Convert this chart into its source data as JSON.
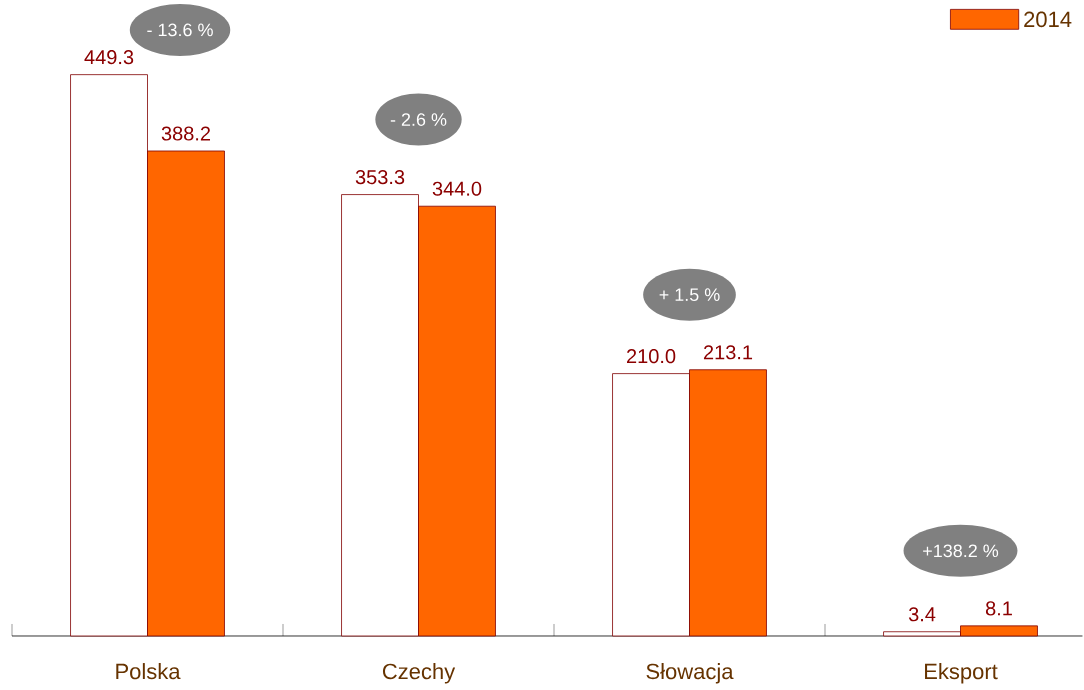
{
  "chart_data": {
    "type": "bar",
    "categories": [
      "Polska",
      "Czechy",
      "Słowacja",
      "Eksport"
    ],
    "series": [
      {
        "color": "#ffffff",
        "values": [
          449.3,
          353.3,
          210.0,
          3.4
        ],
        "value_labels": [
          "449.3",
          "353.3",
          "210.0",
          "3.4"
        ]
      },
      {
        "name": "2014",
        "color": "#ff6600",
        "values": [
          388.2,
          344.0,
          213.1,
          8.1
        ],
        "value_labels": [
          "388.2",
          "344.0",
          "213.1",
          "8.1"
        ]
      }
    ],
    "legend": "top right",
    "annotations": [
      "- 13.6 %",
      "- 2.6 %",
      "+ 1.5 %",
      "+138.2 %"
    ]
  }
}
